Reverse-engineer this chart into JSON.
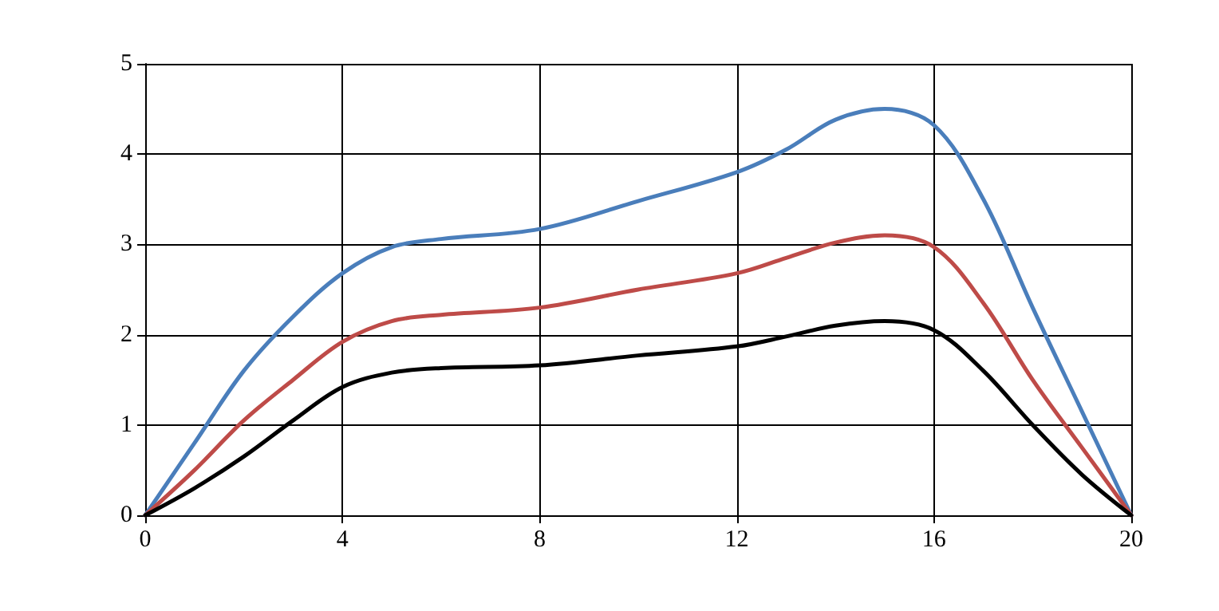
{
  "chart_data": {
    "type": "line",
    "x": [
      0,
      1,
      2,
      3,
      4,
      5,
      6,
      8,
      10,
      12,
      13,
      14,
      15,
      16,
      17,
      18,
      19,
      20
    ],
    "series": [
      {
        "color": "#4a7ebb",
        "values": [
          0,
          0.8,
          1.6,
          2.2,
          2.68,
          2.97,
          3.06,
          3.17,
          3.48,
          3.8,
          4.05,
          4.38,
          4.5,
          4.32,
          3.5,
          2.3,
          1.15,
          0
        ]
      },
      {
        "color": "#be4b48",
        "values": [
          0,
          0.5,
          1.05,
          1.5,
          1.92,
          2.15,
          2.22,
          2.3,
          2.5,
          2.68,
          2.85,
          3.02,
          3.1,
          2.97,
          2.35,
          1.5,
          0.75,
          0
        ]
      },
      {
        "color": "#000000",
        "values": [
          0,
          0.3,
          0.65,
          1.05,
          1.42,
          1.58,
          1.63,
          1.66,
          1.77,
          1.87,
          1.98,
          2.1,
          2.15,
          2.05,
          1.6,
          1.0,
          0.45,
          0
        ]
      }
    ],
    "xlim": [
      0,
      20
    ],
    "xticks": [
      0,
      4,
      8,
      12,
      16,
      20
    ],
    "ylim": [
      0,
      5
    ],
    "yticks": [
      0,
      1,
      2,
      3,
      4,
      5
    ],
    "grid": true,
    "marker": "none",
    "line_style": "solid"
  }
}
